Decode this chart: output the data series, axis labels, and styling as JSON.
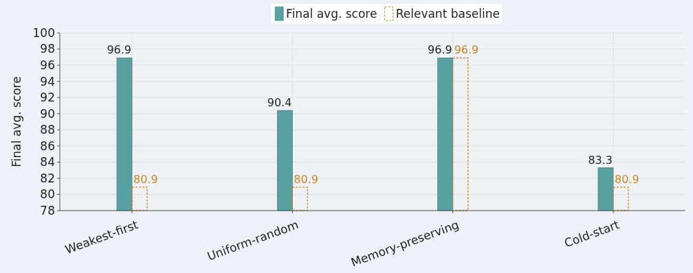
{
  "chart_data": {
    "type": "bar",
    "ylabel": "Final avg. score",
    "categories": [
      "Weakest-first",
      "Uniform-random",
      "Memory-preserving",
      "Cold-start"
    ],
    "series": [
      {
        "name": "Final avg. score",
        "color": "#5a9fa2",
        "values": [
          96.9,
          90.4,
          96.9,
          83.3
        ]
      },
      {
        "name": "Relevant baseline",
        "color": "#c8852a",
        "values": [
          80.9,
          80.9,
          96.9,
          80.9
        ],
        "line_style": "dashed"
      }
    ],
    "ylim": [
      78,
      100
    ],
    "yticks": [
      78,
      80,
      82,
      84,
      86,
      88,
      90,
      92,
      94,
      96,
      98,
      100
    ],
    "grid": true,
    "legend": "top",
    "data_labels": true
  }
}
